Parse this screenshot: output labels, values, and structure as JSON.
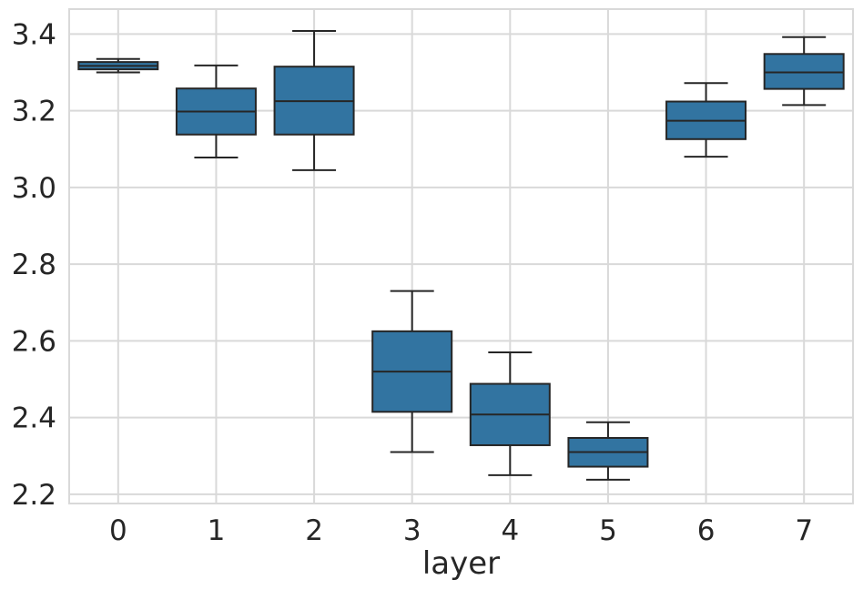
{
  "chart_data": {
    "type": "box",
    "title": "",
    "xlabel": "layer",
    "ylabel": "",
    "categories": [
      "0",
      "1",
      "2",
      "3",
      "4",
      "5",
      "6",
      "7"
    ],
    "y_ticks": [
      2.2,
      2.4,
      2.6,
      2.8,
      3.0,
      3.2,
      3.4
    ],
    "ylim": [
      2.176,
      3.465
    ],
    "grid": true,
    "legend_position": "none",
    "boxes": [
      {
        "category": "0",
        "whislo": 3.3,
        "q1": 3.308,
        "med": 3.317,
        "q3": 3.327,
        "whishi": 3.335
      },
      {
        "category": "1",
        "whislo": 3.078,
        "q1": 3.138,
        "med": 3.198,
        "q3": 3.258,
        "whishi": 3.318
      },
      {
        "category": "2",
        "whislo": 3.045,
        "q1": 3.138,
        "med": 3.225,
        "q3": 3.315,
        "whishi": 3.408
      },
      {
        "category": "3",
        "whislo": 2.31,
        "q1": 2.415,
        "med": 2.52,
        "q3": 2.625,
        "whishi": 2.73
      },
      {
        "category": "4",
        "whislo": 2.25,
        "q1": 2.328,
        "med": 2.408,
        "q3": 2.488,
        "whishi": 2.57
      },
      {
        "category": "5",
        "whislo": 2.238,
        "q1": 2.272,
        "med": 2.31,
        "q3": 2.347,
        "whishi": 2.388
      },
      {
        "category": "6",
        "whislo": 3.08,
        "q1": 3.126,
        "med": 3.174,
        "q3": 3.224,
        "whishi": 3.272
      },
      {
        "category": "7",
        "whislo": 3.215,
        "q1": 3.257,
        "med": 3.3,
        "q3": 3.348,
        "whishi": 3.392
      }
    ],
    "colors": {
      "box_fill": "#3274A1",
      "box_edge": "#262626",
      "whisker": "#262626",
      "grid": "#D9D9D9",
      "tick_label": "#262626",
      "background": "#FFFFFF"
    }
  }
}
